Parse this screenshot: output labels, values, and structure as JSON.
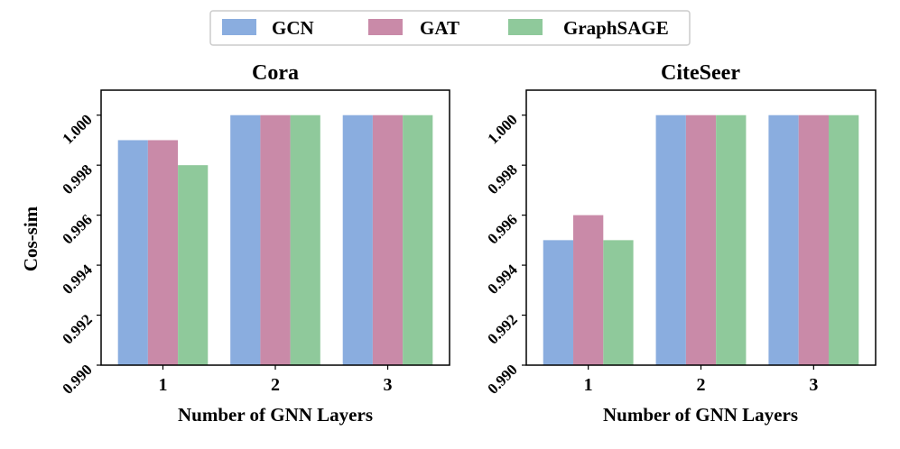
{
  "legend": {
    "items": [
      {
        "label": "GCN",
        "color": "#8aaddf"
      },
      {
        "label": "GAT",
        "color": "#c98aa8"
      },
      {
        "label": "GraphSAGE",
        "color": "#8fc99b"
      }
    ]
  },
  "chart_data": [
    {
      "type": "bar",
      "title": "Cora",
      "xlabel": "Number of GNN Layers",
      "ylabel": "Cos-sim",
      "categories": [
        "1",
        "2",
        "3"
      ],
      "series": [
        {
          "name": "GCN",
          "values": [
            0.999,
            1.0,
            1.0
          ]
        },
        {
          "name": "GAT",
          "values": [
            0.999,
            1.0,
            1.0
          ]
        },
        {
          "name": "GraphSAGE",
          "values": [
            0.998,
            1.0,
            1.0
          ]
        }
      ],
      "ylim": [
        0.99,
        1.001
      ],
      "yticks": [
        "0.990",
        "0.992",
        "0.994",
        "0.996",
        "0.998",
        "1.000"
      ],
      "grid": false,
      "legend": "top-center"
    },
    {
      "type": "bar",
      "title": "CiteSeer",
      "xlabel": "Number of GNN Layers",
      "ylabel": "",
      "categories": [
        "1",
        "2",
        "3"
      ],
      "series": [
        {
          "name": "GCN",
          "values": [
            0.995,
            1.0,
            1.0
          ]
        },
        {
          "name": "GAT",
          "values": [
            0.996,
            1.0,
            1.0
          ]
        },
        {
          "name": "GraphSAGE",
          "values": [
            0.995,
            1.0,
            1.0
          ]
        }
      ],
      "ylim": [
        0.99,
        1.001
      ],
      "yticks": [
        "0.990",
        "0.992",
        "0.994",
        "0.996",
        "0.998",
        "1.000"
      ],
      "grid": false,
      "legend": "top-center"
    }
  ]
}
